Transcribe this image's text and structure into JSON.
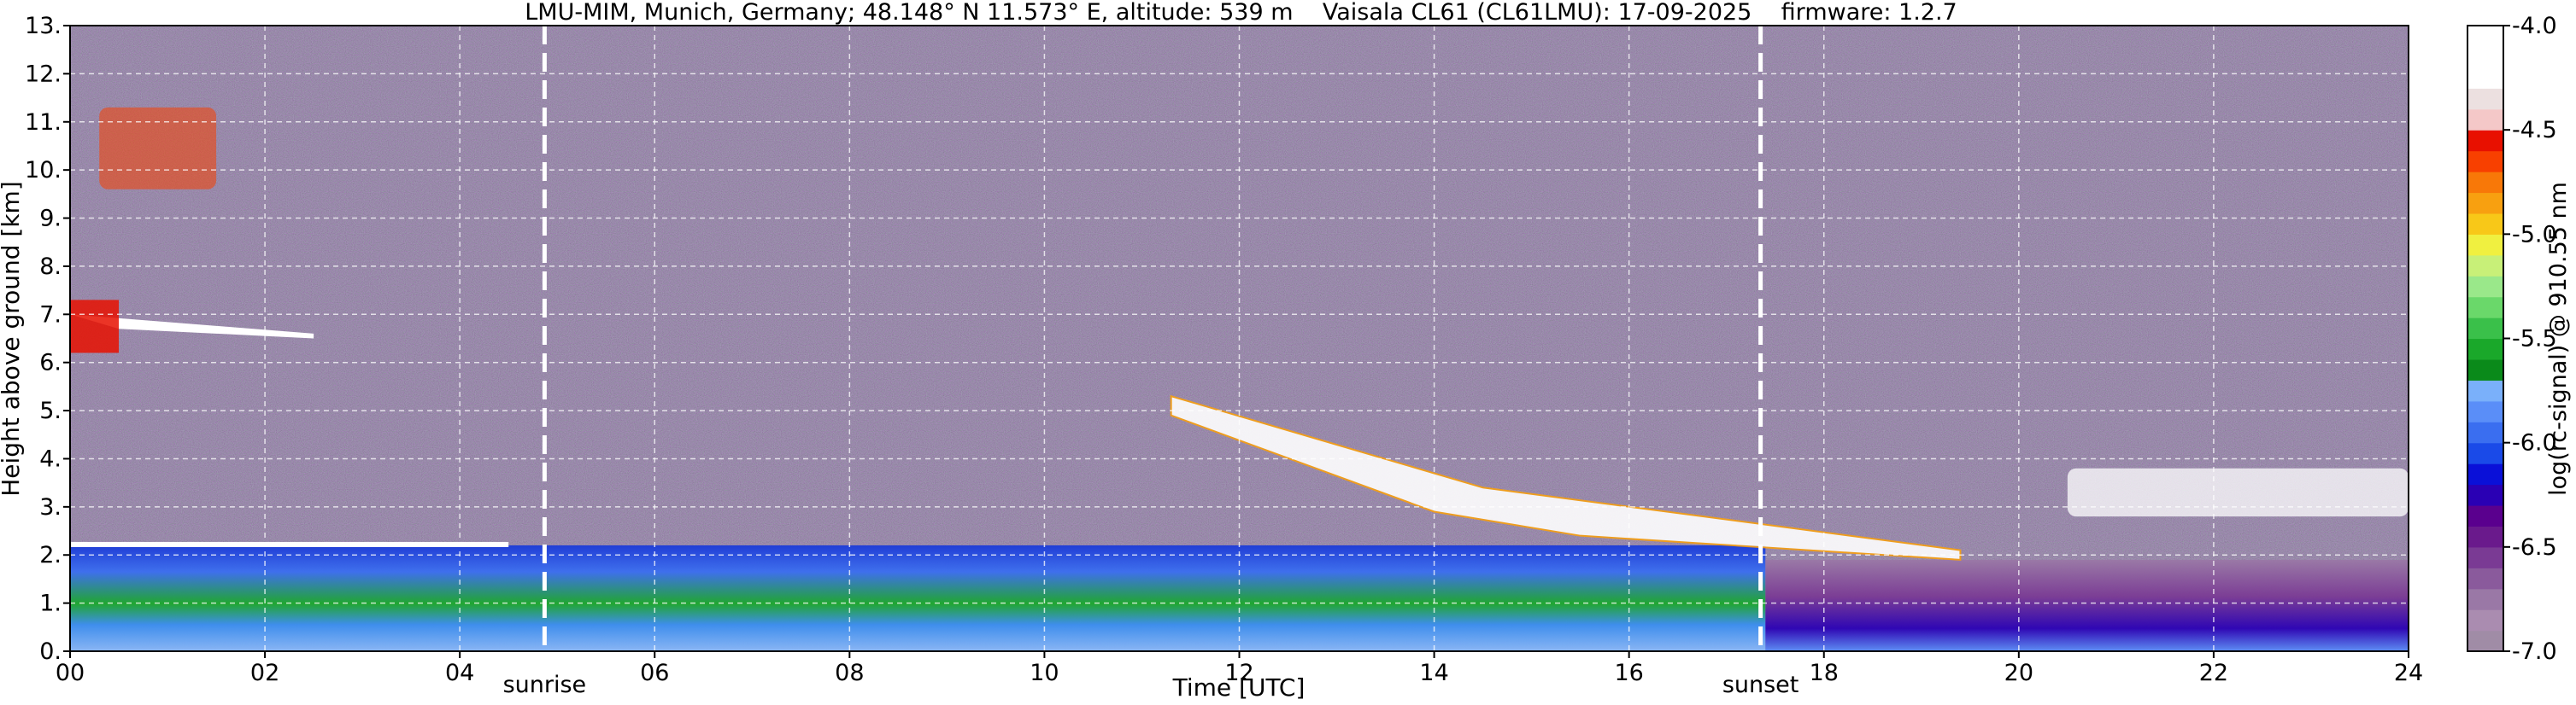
{
  "title": "LMU-MIM, Munich, Germany; 48.148° N 11.573° E, altitude: 539 m    Vaisala CL61 (CL61LMU): 17-09-2025    firmware: 1.2.7",
  "chart_data": {
    "type": "heatmap",
    "title": "LMU-MIM, Munich, Germany; 48.148° N 11.573° E, altitude: 539 m    Vaisala CL61 (CL61LMU): 17-09-2025    firmware: 1.2.7",
    "xlabel": "Time [UTC]",
    "ylabel": "Height above ground [km]",
    "xlim": [
      0,
      24
    ],
    "ylim": [
      0,
      13
    ],
    "xticks": [
      0,
      2,
      4,
      6,
      8,
      10,
      12,
      14,
      16,
      18,
      20,
      22,
      24
    ],
    "xtick_labels": [
      "00",
      "02",
      "04",
      "06",
      "08",
      "10",
      "12",
      "14",
      "16",
      "18",
      "20",
      "22",
      "24"
    ],
    "yticks": [
      0,
      1,
      2,
      3,
      4,
      5,
      6,
      7,
      8,
      9,
      10,
      11,
      12,
      13
    ],
    "ytick_labels": [
      "0.",
      "1.",
      "2.",
      "3.",
      "4.",
      "5.",
      "6.",
      "7.",
      "8.",
      "9.",
      "10.",
      "11.",
      "12.",
      "13."
    ],
    "grid": true,
    "markers": [
      {
        "label": "sunrise",
        "time": 4.87
      },
      {
        "label": "sunset",
        "time": 17.35
      }
    ],
    "colorbar": {
      "label": "log(rc-signal) @ 910.55 nm",
      "range": [
        -7.0,
        -4.0
      ],
      "ticks": [
        -7.0,
        -6.5,
        -6.0,
        -5.5,
        -5.0,
        -4.5,
        -4.0
      ],
      "tick_labels": [
        "-7.0",
        "-6.5",
        "-6.0",
        "-5.5",
        "-5.0",
        "-4.5",
        "-4.0"
      ],
      "colors": [
        "#a08ca6",
        "#aa8cb0",
        "#9a78a6",
        "#8a5a9c",
        "#7a3a94",
        "#6a1a8c",
        "#5a008e",
        "#2a00b4",
        "#0a10d8",
        "#1a4ae8",
        "#3a6ef0",
        "#5a8ef8",
        "#7ab0fa",
        "#0a8a1a",
        "#1aa82a",
        "#3ac04a",
        "#6ad86a",
        "#9ae88a",
        "#c8f078",
        "#f0f040",
        "#f8c818",
        "#f8a010",
        "#f87808",
        "#f84000",
        "#e81000",
        "#f4c8c8",
        "#ece0e0",
        "#ffffff",
        "#ffffff",
        "#ffffff"
      ]
    },
    "features": [
      {
        "kind": "boundary-layer",
        "description_value": "aerosol layer",
        "top_km": 2.2
      },
      {
        "kind": "cloud",
        "time_range": [
          0.0,
          2.5
        ],
        "height_km": [
          6.4,
          7.8
        ]
      },
      {
        "kind": "cloud",
        "time_range": [
          0.3,
          1.5
        ],
        "height_km": [
          9.6,
          11.3
        ]
      },
      {
        "kind": "cloud",
        "time_range": [
          11.3,
          19.4
        ],
        "height_km": [
          2.0,
          5.3
        ]
      },
      {
        "kind": "cloud",
        "time_range": [
          20.5,
          24.0
        ],
        "height_km": [
          2.8,
          3.8
        ]
      }
    ]
  }
}
